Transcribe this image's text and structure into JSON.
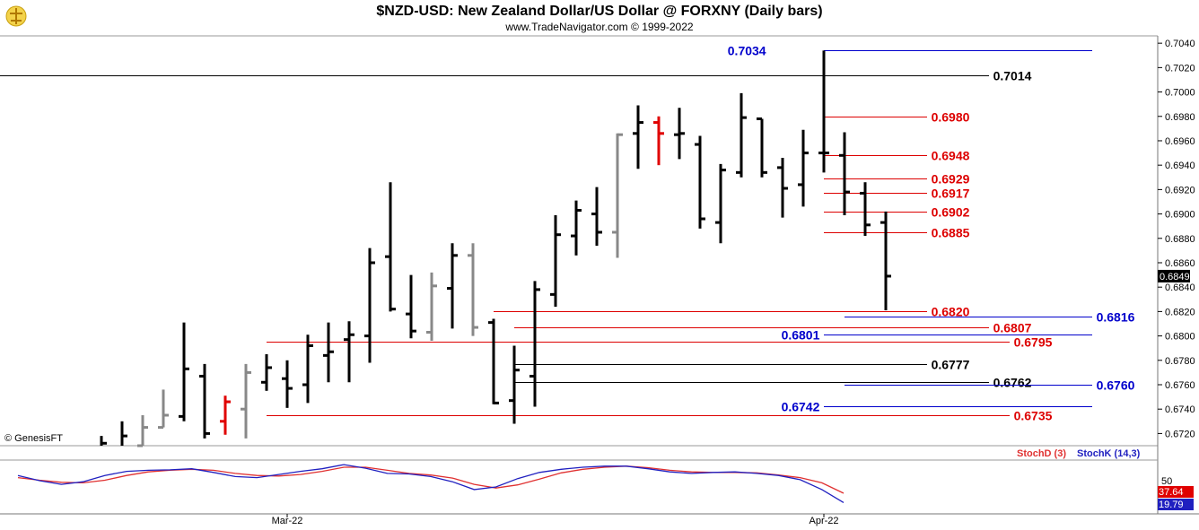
{
  "chart_data": {
    "type": "ohlc",
    "title": "$NZD-USD:  New Zealand Dollar/US Dollar @ FORXNY  (Daily bars)",
    "subtitle": "www.TradeNavigator.com © 1999-2022",
    "watermark": "© GenesisFT",
    "last_price": "0.6849",
    "ylim": [
      0.671,
      0.7046
    ],
    "y_ticks": [
      "0.7040",
      "0.7020",
      "0.7000",
      "0.6980",
      "0.6960",
      "0.6940",
      "0.6920",
      "0.6900",
      "0.6880",
      "0.6860",
      "0.6840",
      "0.6820",
      "0.6800",
      "0.6780",
      "0.6760",
      "0.6740",
      "0.6720"
    ],
    "x_labels": [
      {
        "text": "Mar-22",
        "bar": 9
      },
      {
        "text": "Apr-22",
        "bar": 35
      }
    ],
    "colors": {
      "up": "#000000",
      "down": "#888888",
      "highlight": "#e00000",
      "red_level": "#dd0000",
      "blue_level": "#0000cc",
      "black_level": "#000000",
      "stoch_d": "#e03030",
      "stoch_k": "#2020c0"
    },
    "bars": [
      {
        "o": 0.669,
        "h": 0.6718,
        "l": 0.669,
        "c": 0.6712,
        "color": "black"
      },
      {
        "o": 0.67,
        "h": 0.673,
        "l": 0.67,
        "c": 0.6718,
        "color": "black"
      },
      {
        "o": 0.671,
        "h": 0.6735,
        "l": 0.671,
        "c": 0.6725,
        "color": "gray"
      },
      {
        "o": 0.6725,
        "h": 0.6756,
        "l": 0.6725,
        "c": 0.6735,
        "color": "gray"
      },
      {
        "o": 0.6734,
        "h": 0.6811,
        "l": 0.673,
        "c": 0.6773,
        "color": "black"
      },
      {
        "o": 0.6767,
        "h": 0.6777,
        "l": 0.6716,
        "c": 0.672,
        "color": "black"
      },
      {
        "o": 0.673,
        "h": 0.6751,
        "l": 0.6719,
        "c": 0.6746,
        "color": "red"
      },
      {
        "o": 0.674,
        "h": 0.6777,
        "l": 0.6716,
        "c": 0.677,
        "color": "gray"
      },
      {
        "o": 0.6762,
        "h": 0.6785,
        "l": 0.6755,
        "c": 0.6774,
        "color": "black"
      },
      {
        "o": 0.6765,
        "h": 0.678,
        "l": 0.6741,
        "c": 0.6757,
        "color": "black"
      },
      {
        "o": 0.676,
        "h": 0.6801,
        "l": 0.6745,
        "c": 0.6792,
        "color": "black"
      },
      {
        "o": 0.6784,
        "h": 0.6811,
        "l": 0.6762,
        "c": 0.6787,
        "color": "black"
      },
      {
        "o": 0.6797,
        "h": 0.6812,
        "l": 0.6762,
        "c": 0.6801,
        "color": "black"
      },
      {
        "o": 0.68,
        "h": 0.6872,
        "l": 0.6778,
        "c": 0.686,
        "color": "black"
      },
      {
        "o": 0.6865,
        "h": 0.6926,
        "l": 0.682,
        "c": 0.6822,
        "color": "black"
      },
      {
        "o": 0.6818,
        "h": 0.685,
        "l": 0.6798,
        "c": 0.6804,
        "color": "black"
      },
      {
        "o": 0.6803,
        "h": 0.6852,
        "l": 0.6796,
        "c": 0.6841,
        "color": "gray"
      },
      {
        "o": 0.6839,
        "h": 0.6876,
        "l": 0.6806,
        "c": 0.6866,
        "color": "black"
      },
      {
        "o": 0.6866,
        "h": 0.6876,
        "l": 0.68,
        "c": 0.6807,
        "color": "gray"
      },
      {
        "o": 0.6811,
        "h": 0.6814,
        "l": 0.6744,
        "c": 0.6745,
        "color": "black"
      },
      {
        "o": 0.6747,
        "h": 0.6792,
        "l": 0.6728,
        "c": 0.6772,
        "color": "black"
      },
      {
        "o": 0.6767,
        "h": 0.6845,
        "l": 0.6742,
        "c": 0.6838,
        "color": "black"
      },
      {
        "o": 0.6834,
        "h": 0.6899,
        "l": 0.6824,
        "c": 0.6883,
        "color": "black"
      },
      {
        "o": 0.6882,
        "h": 0.6911,
        "l": 0.6866,
        "c": 0.6903,
        "color": "black"
      },
      {
        "o": 0.69,
        "h": 0.6922,
        "l": 0.6874,
        "c": 0.6885,
        "color": "black"
      },
      {
        "o": 0.6885,
        "h": 0.6966,
        "l": 0.6864,
        "c": 0.6965,
        "color": "gray"
      },
      {
        "o": 0.6966,
        "h": 0.6989,
        "l": 0.6937,
        "c": 0.6975,
        "color": "black"
      },
      {
        "o": 0.6975,
        "h": 0.698,
        "l": 0.694,
        "c": 0.6966,
        "color": "red"
      },
      {
        "o": 0.6965,
        "h": 0.6987,
        "l": 0.6945,
        "c": 0.6966,
        "color": "black"
      },
      {
        "o": 0.6957,
        "h": 0.6964,
        "l": 0.6888,
        "c": 0.6896,
        "color": "black"
      },
      {
        "o": 0.6893,
        "h": 0.6941,
        "l": 0.6876,
        "c": 0.6936,
        "color": "black"
      },
      {
        "o": 0.6934,
        "h": 0.6999,
        "l": 0.693,
        "c": 0.6979,
        "color": "black"
      },
      {
        "o": 0.6978,
        "h": 0.6978,
        "l": 0.693,
        "c": 0.6934,
        "color": "black"
      },
      {
        "o": 0.6938,
        "h": 0.6946,
        "l": 0.6897,
        "c": 0.6921,
        "color": "black"
      },
      {
        "o": 0.6924,
        "h": 0.6969,
        "l": 0.6906,
        "c": 0.695,
        "color": "black"
      },
      {
        "o": 0.695,
        "h": 0.7034,
        "l": 0.6934,
        "c": 0.695,
        "color": "black"
      },
      {
        "o": 0.6948,
        "h": 0.6967,
        "l": 0.6899,
        "c": 0.6918,
        "color": "black"
      },
      {
        "o": 0.6917,
        "h": 0.6926,
        "l": 0.6882,
        "c": 0.6891,
        "color": "black"
      },
      {
        "o": 0.6893,
        "h": 0.6902,
        "l": 0.6821,
        "c": 0.6849,
        "color": "black"
      }
    ],
    "levels": [
      {
        "value": 0.7034,
        "label": "0.7034",
        "color": "blue",
        "from_bar": 35,
        "to_bar": 48,
        "label_bar": 32.2,
        "label_side": "left"
      },
      {
        "value": 0.7014,
        "label": "0.7014",
        "color": "black",
        "from_bar": -9,
        "to_bar": 43,
        "label_bar": 43.2,
        "label_side": "right"
      },
      {
        "value": 0.698,
        "label": "0.6980",
        "color": "red",
        "from_bar": 35,
        "to_bar": 40,
        "label_bar": 40.2,
        "label_side": "right"
      },
      {
        "value": 0.6948,
        "label": "0.6948",
        "color": "red",
        "from_bar": 35,
        "to_bar": 40,
        "label_bar": 40.2,
        "label_side": "right"
      },
      {
        "value": 0.6929,
        "label": "0.6929",
        "color": "red",
        "from_bar": 35,
        "to_bar": 40,
        "label_bar": 40.2,
        "label_side": "right"
      },
      {
        "value": 0.6917,
        "label": "0.6917",
        "color": "red",
        "from_bar": 35,
        "to_bar": 40,
        "label_bar": 40.2,
        "label_side": "right"
      },
      {
        "value": 0.6902,
        "label": "0.6902",
        "color": "red",
        "from_bar": 35,
        "to_bar": 40,
        "label_bar": 40.2,
        "label_side": "right"
      },
      {
        "value": 0.6885,
        "label": "0.6885",
        "color": "red",
        "from_bar": 35,
        "to_bar": 40,
        "label_bar": 40.2,
        "label_side": "right"
      },
      {
        "value": 0.682,
        "label": "0.6820",
        "color": "red",
        "from_bar": 19,
        "to_bar": 40,
        "label_bar": 40.2,
        "label_side": "right"
      },
      {
        "value": 0.6816,
        "label": "0.6816",
        "color": "blue",
        "from_bar": 36,
        "to_bar": 48,
        "label_bar": 48.2,
        "label_side": "right"
      },
      {
        "value": 0.6807,
        "label": "0.6807",
        "color": "red",
        "from_bar": 20,
        "to_bar": 43,
        "label_bar": 43.2,
        "label_side": "right"
      },
      {
        "value": 0.6801,
        "label": "0.6801",
        "color": "blue",
        "from_bar": 35,
        "to_bar": 48,
        "label_bar": 34.8,
        "label_side": "left"
      },
      {
        "value": 0.6795,
        "label": "0.6795",
        "color": "red",
        "from_bar": 8,
        "to_bar": 44,
        "label_bar": 44.2,
        "label_side": "right"
      },
      {
        "value": 0.6777,
        "label": "0.6777",
        "color": "black",
        "from_bar": 20,
        "to_bar": 40,
        "label_bar": 40.2,
        "label_side": "right"
      },
      {
        "value": 0.6762,
        "label": "0.6762",
        "color": "black",
        "from_bar": 20,
        "to_bar": 43,
        "label_bar": 43.2,
        "label_side": "right"
      },
      {
        "value": 0.676,
        "label": "0.6760",
        "color": "blue",
        "from_bar": 36,
        "to_bar": 48,
        "label_bar": 48.2,
        "label_side": "right"
      },
      {
        "value": 0.6742,
        "label": "0.6742",
        "color": "blue",
        "from_bar": 35,
        "to_bar": 48,
        "label_bar": 34.8,
        "label_side": "left"
      },
      {
        "value": 0.6735,
        "label": "0.6735",
        "color": "red",
        "from_bar": 8,
        "to_bar": 44,
        "label_bar": 44.2,
        "label_side": "right"
      }
    ],
    "stochastic": {
      "label_d": "StochD (3)",
      "label_k": "StochK (14,3)",
      "tick": "50",
      "value_d": "37.64",
      "value_k": "19.79",
      "ylim": [
        0,
        100
      ],
      "k_values": [
        72,
        62,
        55,
        60,
        72,
        80,
        82,
        83,
        85,
        78,
        70,
        68,
        74,
        80,
        85,
        93,
        86,
        76,
        75,
        70,
        60,
        45,
        50,
        66,
        78,
        84,
        88,
        90,
        90,
        85,
        79,
        76,
        78,
        79,
        76,
        72,
        64,
        45,
        20
      ],
      "d_values": [
        68,
        63,
        59,
        58,
        63,
        72,
        79,
        82,
        84,
        82,
        76,
        72,
        71,
        74,
        80,
        88,
        88,
        82,
        76,
        73,
        67,
        55,
        48,
        54,
        65,
        77,
        84,
        88,
        90,
        87,
        82,
        79,
        78,
        78,
        77,
        73,
        68,
        58,
        38
      ]
    }
  },
  "icons": {
    "logo": "trader-logo-icon"
  }
}
